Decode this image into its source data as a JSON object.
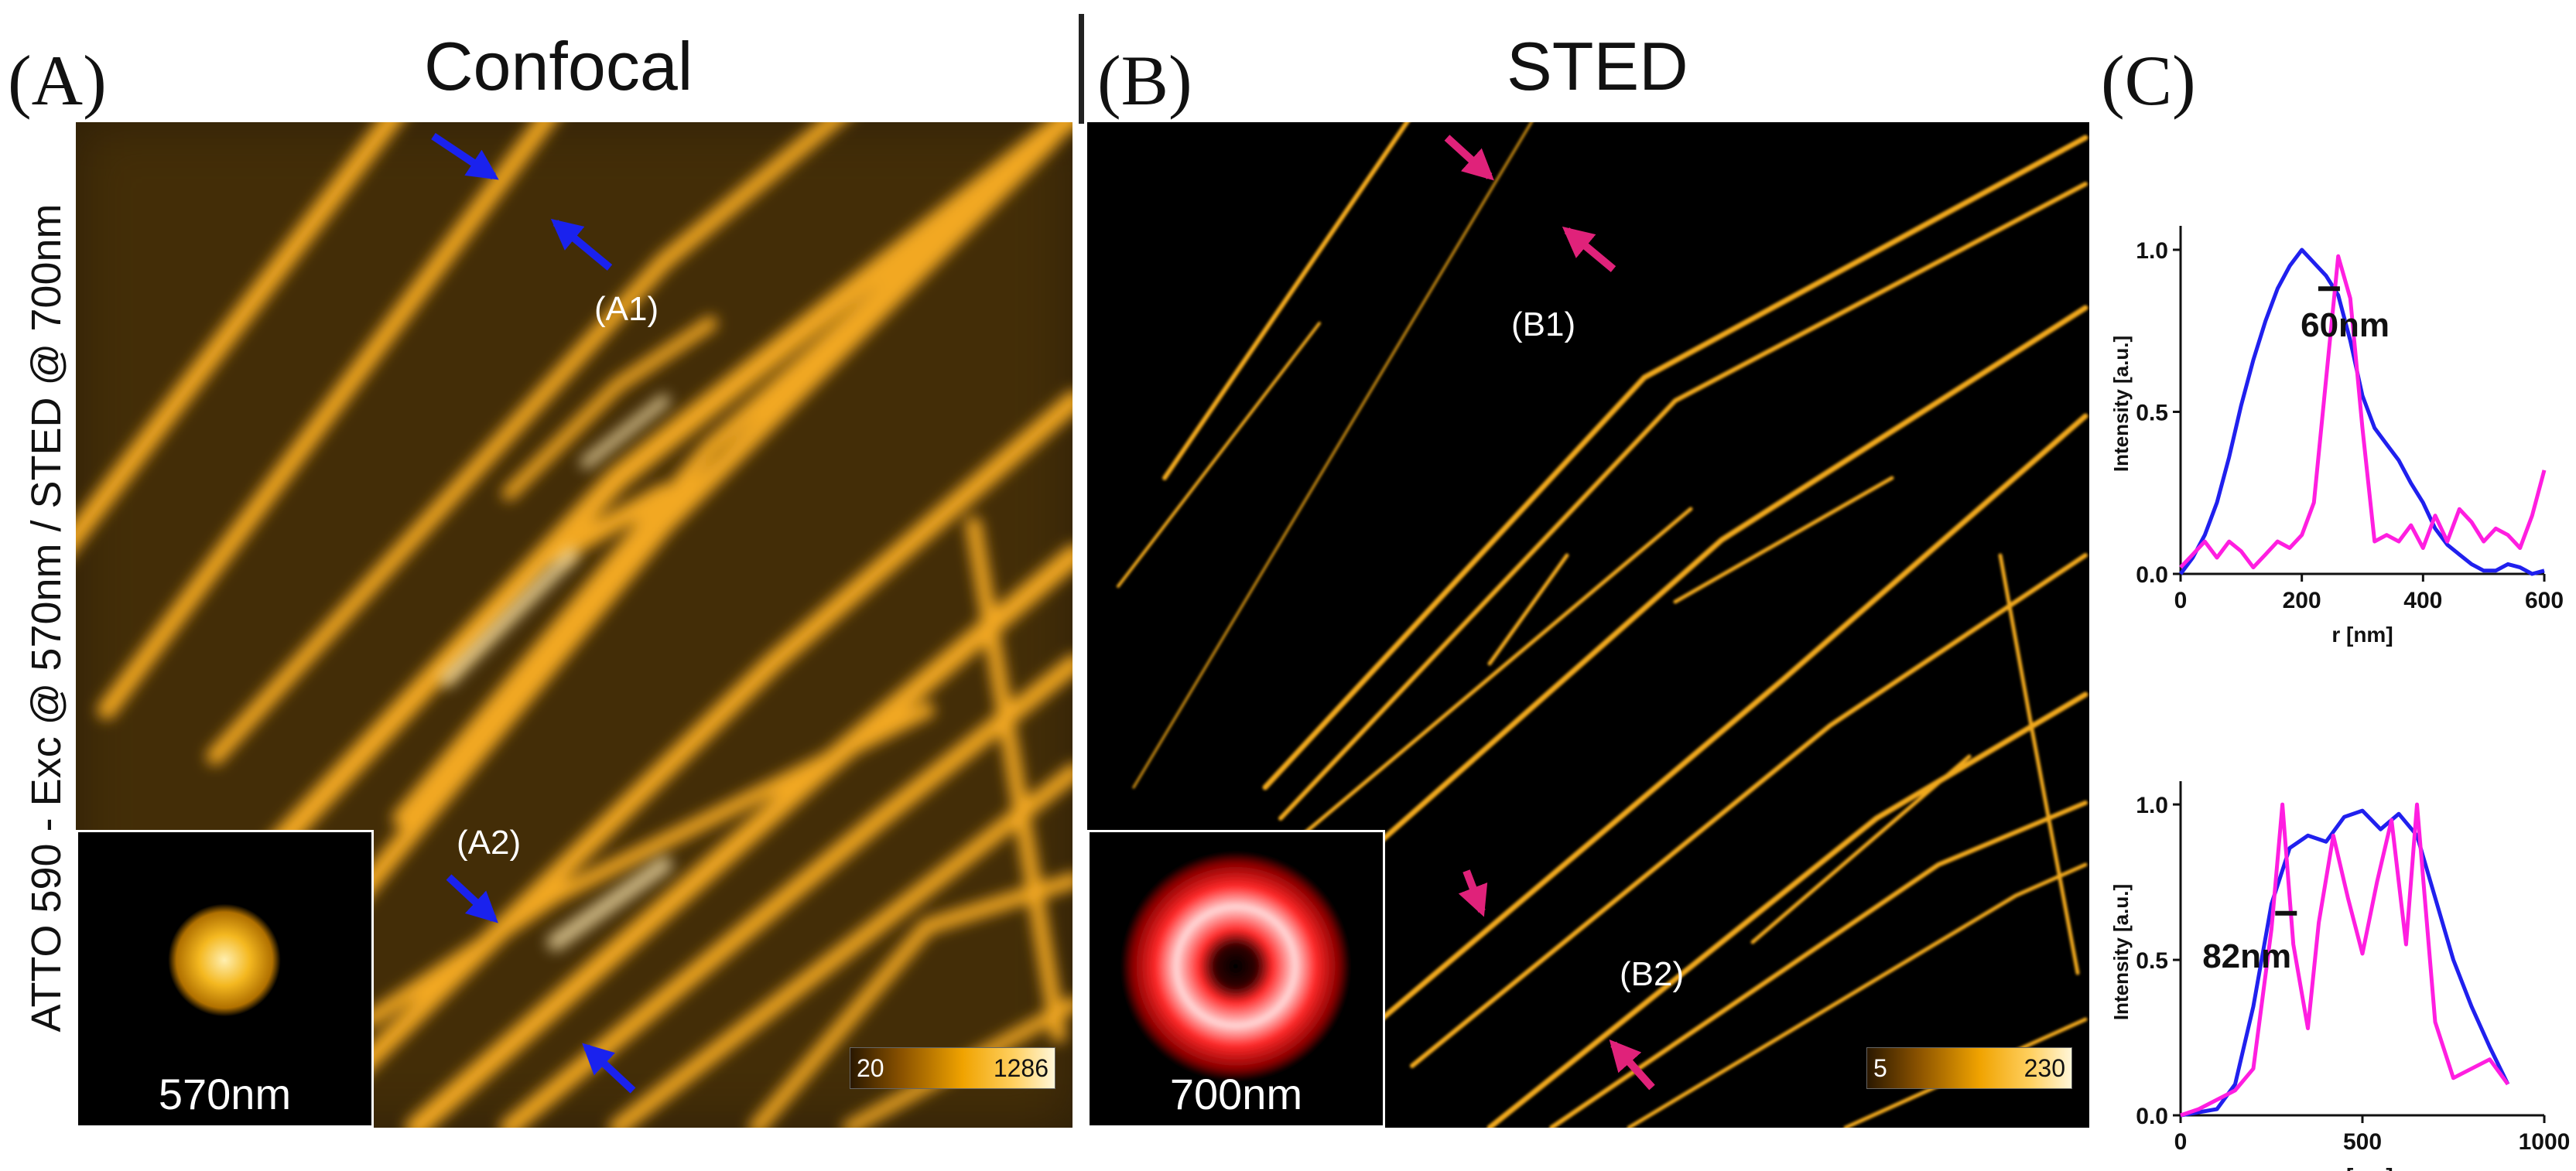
{
  "panels": {
    "a": {
      "letter": "(A)",
      "title": "Confocal"
    },
    "b": {
      "letter": "(B)",
      "title": "STED"
    },
    "c": {
      "letter": "(C)"
    }
  },
  "side_label": "ATTO 590 - Exc @ 570nm / STED @ 700nm",
  "confocal": {
    "annotations": [
      "(A1)",
      "(A2)"
    ],
    "inset_label": "570nm",
    "colorbar": {
      "min": "20",
      "max": "1286"
    },
    "arrow_color": "#1a22ee"
  },
  "sted": {
    "annotations": [
      "(B1)",
      "(B2)"
    ],
    "inset_label": "700nm",
    "colorbar": {
      "min": "5",
      "max": "230"
    },
    "arrow_color": "#e0227a"
  },
  "colors": {
    "confocal_line": "#2020ee",
    "sted_line": "#ff1ee0",
    "filament": "#f0a81c"
  },
  "chart_data": [
    {
      "type": "line",
      "xlabel": "r [nm]",
      "ylabel": "Intensity [a.u.]",
      "xlim": [
        0,
        600
      ],
      "ylim": [
        0,
        1.05
      ],
      "xticks": [
        "0",
        "200",
        "400",
        "600"
      ],
      "yticks": [
        "0.0",
        "0.5",
        "1.0"
      ],
      "annotation": "60nm",
      "series": [
        {
          "color": "#2020ee",
          "x": [
            0,
            20,
            40,
            60,
            80,
            100,
            120,
            140,
            160,
            180,
            200,
            220,
            240,
            260,
            280,
            300,
            320,
            340,
            360,
            380,
            400,
            420,
            440,
            460,
            480,
            500,
            520,
            540,
            560,
            580,
            600
          ],
          "y": [
            0.0,
            0.05,
            0.12,
            0.22,
            0.36,
            0.52,
            0.66,
            0.78,
            0.88,
            0.95,
            1.0,
            0.96,
            0.92,
            0.86,
            0.72,
            0.55,
            0.45,
            0.4,
            0.35,
            0.28,
            0.22,
            0.14,
            0.09,
            0.06,
            0.03,
            0.01,
            0.01,
            0.03,
            0.02,
            0.0,
            0.01
          ]
        },
        {
          "color": "#ff1ee0",
          "x": [
            0,
            20,
            40,
            60,
            80,
            100,
            120,
            140,
            160,
            180,
            200,
            220,
            240,
            260,
            280,
            300,
            320,
            340,
            360,
            380,
            400,
            420,
            440,
            460,
            480,
            500,
            520,
            540,
            560,
            580,
            600
          ],
          "y": [
            0.02,
            0.06,
            0.1,
            0.05,
            0.1,
            0.07,
            0.02,
            0.06,
            0.1,
            0.08,
            0.12,
            0.22,
            0.6,
            0.98,
            0.85,
            0.45,
            0.1,
            0.12,
            0.1,
            0.15,
            0.08,
            0.18,
            0.1,
            0.2,
            0.16,
            0.1,
            0.14,
            0.12,
            0.08,
            0.18,
            0.32
          ]
        }
      ]
    },
    {
      "type": "line",
      "xlabel": "r [nm]",
      "ylabel": "Intensity [a.u.]",
      "xlim": [
        0,
        1000
      ],
      "ylim": [
        0,
        1.05
      ],
      "xticks": [
        "0",
        "500",
        "1000"
      ],
      "yticks": [
        "0.0",
        "0.5",
        "1.0"
      ],
      "annotation": "82nm",
      "series": [
        {
          "color": "#2020ee",
          "x": [
            0,
            50,
            100,
            150,
            200,
            250,
            300,
            350,
            400,
            450,
            500,
            550,
            600,
            650,
            700,
            750,
            800,
            850,
            900
          ],
          "y": [
            0.0,
            0.01,
            0.02,
            0.1,
            0.35,
            0.68,
            0.86,
            0.9,
            0.88,
            0.96,
            0.98,
            0.92,
            0.97,
            0.9,
            0.7,
            0.5,
            0.35,
            0.22,
            0.1
          ]
        },
        {
          "color": "#ff1ee0",
          "x": [
            0,
            50,
            100,
            150,
            200,
            250,
            280,
            310,
            350,
            380,
            420,
            460,
            500,
            540,
            580,
            620,
            650,
            700,
            750,
            800,
            850,
            900
          ],
          "y": [
            0.0,
            0.02,
            0.05,
            0.08,
            0.15,
            0.6,
            1.0,
            0.55,
            0.28,
            0.62,
            0.9,
            0.7,
            0.52,
            0.75,
            0.95,
            0.55,
            1.0,
            0.3,
            0.12,
            0.15,
            0.18,
            0.1
          ]
        }
      ]
    }
  ]
}
